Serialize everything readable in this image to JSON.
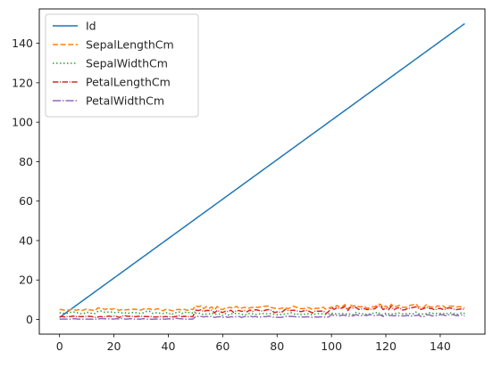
{
  "chart_data": {
    "type": "line",
    "title": "",
    "xlabel": "",
    "ylabel": "",
    "xlim": [
      -7.45,
      156.45
    ],
    "ylim": [
      -7.45,
      157.45
    ],
    "x_ticks": [
      0,
      20,
      40,
      60,
      80,
      100,
      120,
      140
    ],
    "y_ticks": [
      0,
      20,
      40,
      60,
      80,
      100,
      120,
      140
    ],
    "grid": false,
    "legend_position": "upper-left",
    "x_range": [
      0,
      149
    ],
    "series": [
      {
        "name": "Id",
        "color": "#1f77b4",
        "dash": "solid",
        "values": [
          1,
          2,
          3,
          4,
          5,
          6,
          7,
          8,
          9,
          10,
          11,
          12,
          13,
          14,
          15,
          16,
          17,
          18,
          19,
          20,
          21,
          22,
          23,
          24,
          25,
          26,
          27,
          28,
          29,
          30,
          31,
          32,
          33,
          34,
          35,
          36,
          37,
          38,
          39,
          40,
          41,
          42,
          43,
          44,
          45,
          46,
          47,
          48,
          49,
          50,
          51,
          52,
          53,
          54,
          55,
          56,
          57,
          58,
          59,
          60,
          61,
          62,
          63,
          64,
          65,
          66,
          67,
          68,
          69,
          70,
          71,
          72,
          73,
          74,
          75,
          76,
          77,
          78,
          79,
          80,
          81,
          82,
          83,
          84,
          85,
          86,
          87,
          88,
          89,
          90,
          91,
          92,
          93,
          94,
          95,
          96,
          97,
          98,
          99,
          100,
          101,
          102,
          103,
          104,
          105,
          106,
          107,
          108,
          109,
          110,
          111,
          112,
          113,
          114,
          115,
          116,
          117,
          118,
          119,
          120,
          121,
          122,
          123,
          124,
          125,
          126,
          127,
          128,
          129,
          130,
          131,
          132,
          133,
          134,
          135,
          136,
          137,
          138,
          139,
          140,
          141,
          142,
          143,
          144,
          145,
          146,
          147,
          148,
          149,
          150
        ]
      },
      {
        "name": "SepalLengthCm",
        "color": "#ff7f0e",
        "dash": "dashed",
        "values": [
          5.1,
          4.9,
          4.7,
          4.6,
          5.0,
          5.4,
          4.6,
          5.0,
          4.4,
          4.9,
          5.4,
          4.8,
          4.8,
          4.3,
          5.8,
          5.7,
          5.4,
          5.1,
          5.7,
          5.1,
          5.4,
          5.1,
          4.6,
          5.1,
          4.8,
          5.0,
          5.0,
          5.2,
          5.2,
          4.7,
          4.8,
          5.4,
          5.2,
          5.5,
          4.9,
          5.0,
          5.5,
          4.9,
          4.4,
          5.1,
          5.0,
          4.5,
          4.4,
          5.0,
          5.1,
          4.8,
          5.1,
          4.6,
          5.3,
          5.0,
          7.0,
          6.4,
          6.9,
          5.5,
          6.5,
          5.7,
          6.3,
          4.9,
          6.6,
          5.2,
          5.0,
          5.9,
          6.0,
          6.1,
          5.6,
          6.7,
          5.6,
          5.8,
          6.2,
          5.6,
          5.9,
          6.1,
          6.3,
          6.1,
          6.4,
          6.6,
          6.8,
          6.7,
          6.0,
          5.7,
          5.5,
          5.5,
          5.8,
          6.0,
          5.4,
          6.0,
          6.7,
          6.3,
          5.6,
          5.5,
          5.5,
          6.1,
          5.8,
          5.0,
          5.6,
          5.7,
          5.7,
          6.2,
          5.1,
          5.7,
          6.3,
          5.8,
          7.1,
          6.3,
          6.5,
          7.6,
          4.9,
          7.3,
          6.7,
          7.2,
          6.5,
          6.4,
          6.8,
          5.7,
          5.8,
          6.4,
          6.5,
          7.7,
          7.7,
          6.0,
          6.9,
          5.6,
          7.7,
          6.3,
          6.7,
          7.2,
          6.2,
          6.1,
          6.4,
          7.2,
          7.4,
          7.9,
          6.4,
          6.3,
          6.1,
          7.7,
          6.3,
          6.4,
          6.0,
          6.9,
          6.7,
          6.9,
          5.8,
          6.8,
          6.7,
          6.7,
          6.3,
          6.5,
          6.2,
          5.9
        ]
      },
      {
        "name": "SepalWidthCm",
        "color": "#2ca02c",
        "dash": "dotted",
        "values": [
          3.5,
          3.0,
          3.2,
          3.1,
          3.6,
          3.9,
          3.4,
          3.4,
          2.9,
          3.1,
          3.7,
          3.4,
          3.0,
          3.0,
          4.0,
          4.4,
          3.9,
          3.5,
          3.8,
          3.8,
          3.4,
          3.7,
          3.6,
          3.3,
          3.4,
          3.0,
          3.4,
          3.5,
          3.4,
          3.2,
          3.1,
          3.4,
          4.1,
          4.2,
          3.1,
          3.2,
          3.5,
          3.1,
          3.0,
          3.4,
          3.5,
          2.3,
          3.2,
          3.5,
          3.8,
          3.0,
          3.8,
          3.2,
          3.7,
          3.3,
          3.2,
          3.2,
          3.1,
          2.3,
          2.8,
          2.8,
          3.3,
          2.4,
          2.9,
          2.7,
          2.0,
          3.0,
          2.2,
          2.9,
          2.9,
          3.1,
          3.0,
          2.7,
          2.2,
          2.5,
          3.2,
          2.8,
          2.5,
          2.8,
          2.9,
          3.0,
          2.8,
          3.0,
          2.9,
          2.6,
          2.4,
          2.4,
          2.7,
          2.7,
          3.0,
          3.4,
          3.1,
          2.3,
          3.0,
          2.5,
          2.6,
          3.0,
          2.6,
          2.3,
          2.7,
          3.0,
          2.9,
          2.9,
          2.5,
          2.8,
          3.3,
          2.7,
          3.0,
          2.9,
          3.0,
          3.0,
          2.5,
          2.9,
          2.5,
          3.6,
          3.2,
          2.7,
          3.0,
          2.5,
          2.8,
          3.2,
          3.0,
          3.8,
          2.6,
          2.2,
          3.2,
          2.8,
          2.8,
          2.7,
          3.3,
          3.2,
          2.8,
          3.0,
          2.8,
          3.0,
          2.8,
          3.8,
          2.8,
          2.8,
          2.6,
          3.0,
          3.4,
          3.1,
          3.0,
          3.1,
          3.1,
          3.1,
          2.7,
          3.2,
          3.3,
          3.0,
          2.5,
          3.0,
          3.4,
          3.0
        ]
      },
      {
        "name": "PetalLengthCm",
        "color": "#d62728",
        "dash": "dashdot",
        "values": [
          1.4,
          1.4,
          1.3,
          1.5,
          1.4,
          1.7,
          1.4,
          1.5,
          1.4,
          1.5,
          1.5,
          1.6,
          1.4,
          1.1,
          1.2,
          1.5,
          1.3,
          1.4,
          1.7,
          1.5,
          1.7,
          1.5,
          1.0,
          1.7,
          1.9,
          1.6,
          1.6,
          1.5,
          1.4,
          1.6,
          1.6,
          1.5,
          1.5,
          1.4,
          1.5,
          1.2,
          1.3,
          1.5,
          1.3,
          1.5,
          1.3,
          1.3,
          1.3,
          1.6,
          1.9,
          1.4,
          1.6,
          1.4,
          1.5,
          1.4,
          4.7,
          4.5,
          4.9,
          4.0,
          4.6,
          4.5,
          4.7,
          3.3,
          4.6,
          3.9,
          3.5,
          4.2,
          4.0,
          4.7,
          3.6,
          4.4,
          4.5,
          4.1,
          4.5,
          3.9,
          4.8,
          4.0,
          4.9,
          4.7,
          4.3,
          4.4,
          4.8,
          5.0,
          4.5,
          3.5,
          3.8,
          3.7,
          3.9,
          5.1,
          4.5,
          4.5,
          4.7,
          4.4,
          4.1,
          4.0,
          4.4,
          4.6,
          4.0,
          3.3,
          4.2,
          4.2,
          4.2,
          4.3,
          3.0,
          4.1,
          6.0,
          5.1,
          5.9,
          5.6,
          5.8,
          6.6,
          4.5,
          6.3,
          5.8,
          6.1,
          5.1,
          5.3,
          5.5,
          5.0,
          5.1,
          5.3,
          5.5,
          6.7,
          6.9,
          5.0,
          5.7,
          4.9,
          6.7,
          4.9,
          5.7,
          6.0,
          4.8,
          4.9,
          5.6,
          5.8,
          6.1,
          6.4,
          5.6,
          5.1,
          5.6,
          6.1,
          5.6,
          5.5,
          4.8,
          5.4,
          5.6,
          5.1,
          5.1,
          5.9,
          5.7,
          5.2,
          5.0,
          5.2,
          5.4,
          5.1
        ]
      },
      {
        "name": "PetalWidthCm",
        "color": "#9467bd",
        "dash": "longdashdot",
        "values": [
          0.2,
          0.2,
          0.2,
          0.2,
          0.2,
          0.4,
          0.3,
          0.2,
          0.2,
          0.1,
          0.2,
          0.2,
          0.1,
          0.1,
          0.2,
          0.4,
          0.4,
          0.3,
          0.3,
          0.3,
          0.2,
          0.4,
          0.2,
          0.5,
          0.2,
          0.2,
          0.4,
          0.2,
          0.2,
          0.2,
          0.2,
          0.4,
          0.1,
          0.2,
          0.1,
          0.2,
          0.2,
          0.1,
          0.2,
          0.2,
          0.3,
          0.3,
          0.2,
          0.6,
          0.4,
          0.3,
          0.2,
          0.2,
          0.2,
          0.2,
          1.4,
          1.5,
          1.5,
          1.3,
          1.5,
          1.3,
          1.6,
          1.0,
          1.3,
          1.4,
          1.0,
          1.5,
          1.0,
          1.4,
          1.3,
          1.4,
          1.5,
          1.0,
          1.5,
          1.1,
          1.8,
          1.3,
          1.5,
          1.2,
          1.3,
          1.4,
          1.4,
          1.7,
          1.5,
          1.0,
          1.1,
          1.0,
          1.2,
          1.6,
          1.5,
          1.6,
          1.5,
          1.3,
          1.3,
          1.3,
          1.2,
          1.4,
          1.2,
          1.0,
          1.3,
          1.2,
          1.3,
          1.3,
          1.1,
          1.3,
          2.5,
          1.9,
          2.1,
          1.8,
          2.2,
          2.1,
          1.7,
          1.8,
          1.8,
          2.5,
          2.0,
          1.9,
          2.1,
          2.0,
          2.4,
          2.3,
          1.8,
          2.2,
          2.3,
          1.5,
          2.3,
          2.0,
          2.0,
          1.8,
          2.1,
          1.8,
          1.8,
          1.8,
          2.1,
          1.6,
          1.9,
          2.0,
          2.2,
          1.5,
          1.4,
          2.3,
          2.4,
          1.8,
          1.8,
          2.1,
          2.4,
          2.3,
          1.9,
          2.3,
          2.5,
          2.3,
          1.9,
          2.0,
          2.3,
          1.8
        ]
      }
    ]
  }
}
